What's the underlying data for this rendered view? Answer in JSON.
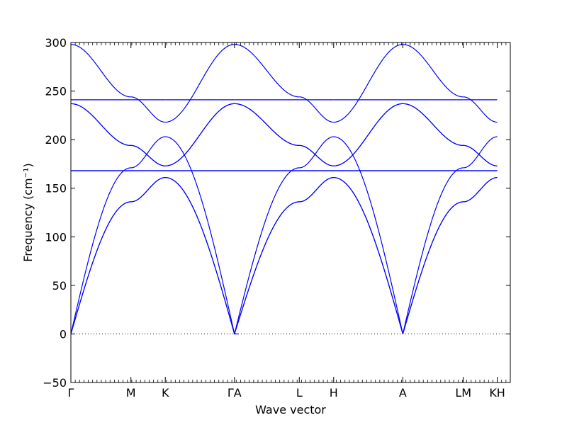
{
  "chart_data": {
    "type": "line",
    "title": "",
    "xlabel": "Wave vector",
    "ylabel": "Frequency (cm⁻¹)",
    "ylim": [
      -50,
      300
    ],
    "yticks": [
      -50,
      0,
      50,
      100,
      150,
      200,
      250,
      300
    ],
    "grid": false,
    "line_color": "#0000ff",
    "zero_line": "dotted",
    "xlim": [
      0,
      5.05
    ],
    "xticks": [
      {
        "pos": 0.0,
        "label": "Γ"
      },
      {
        "pos": 0.69,
        "label": "M"
      },
      {
        "pos": 1.085,
        "label": "K"
      },
      {
        "pos": 1.88,
        "label": "ΓA"
      },
      {
        "pos": 2.625,
        "label": "L"
      },
      {
        "pos": 3.02,
        "label": "H"
      },
      {
        "pos": 3.815,
        "label": "A"
      },
      {
        "pos": 4.51,
        "label": "LM"
      },
      {
        "pos": 4.9,
        "label": "KH"
      }
    ],
    "segments": [
      {
        "name": "Γ-M",
        "x": [
          0.0,
          0.69
        ],
        "branches": [
          {
            "start": 0,
            "end": 136,
            "shape": "acoustic"
          },
          {
            "start": 0,
            "end": 136,
            "shape": "acoustic"
          },
          {
            "start": 0,
            "end": 171,
            "shape": "acoustic"
          },
          {
            "start": 168,
            "end": 168,
            "shape": "cos"
          },
          {
            "start": 168,
            "end": 168,
            "shape": "cos"
          },
          {
            "start": 237,
            "end": 194,
            "shape": "cos"
          },
          {
            "start": 237,
            "end": 194,
            "shape": "cos"
          },
          {
            "start": 241,
            "end": 241,
            "shape": "cos"
          },
          {
            "start": 298,
            "end": 244,
            "shape": "cos"
          }
        ]
      },
      {
        "name": "M-K",
        "x": [
          0.69,
          1.085
        ],
        "branches": [
          {
            "start": 136,
            "end": 161,
            "shape": "cos"
          },
          {
            "start": 136,
            "end": 161,
            "shape": "cos"
          },
          {
            "start": 171,
            "end": 203,
            "shape": "cos"
          },
          {
            "start": 168,
            "end": 168,
            "shape": "cos"
          },
          {
            "start": 168,
            "end": 168,
            "shape": "cos"
          },
          {
            "start": 194,
            "end": 173,
            "shape": "cos"
          },
          {
            "start": 194,
            "end": 173,
            "shape": "cos"
          },
          {
            "start": 241,
            "end": 241,
            "shape": "cos"
          },
          {
            "start": 244,
            "end": 218,
            "shape": "cos"
          }
        ]
      },
      {
        "name": "K-Γ",
        "x": [
          1.085,
          1.88
        ],
        "branches": [
          {
            "start": 161,
            "end": 0,
            "shape": "acoustic-rev"
          },
          {
            "start": 161,
            "end": 0,
            "shape": "acoustic-rev"
          },
          {
            "start": 203,
            "end": 0,
            "shape": "acoustic-rev"
          },
          {
            "start": 168,
            "end": 168,
            "shape": "cos"
          },
          {
            "start": 168,
            "end": 168,
            "shape": "cos"
          },
          {
            "start": 173,
            "end": 237,
            "shape": "cos"
          },
          {
            "start": 173,
            "end": 237,
            "shape": "cos"
          },
          {
            "start": 241,
            "end": 241,
            "shape": "cos"
          },
          {
            "start": 218,
            "end": 298,
            "shape": "cos"
          }
        ]
      },
      {
        "name": "A-L",
        "x": [
          1.88,
          2.625
        ],
        "branches": [
          {
            "start": 0,
            "end": 136,
            "shape": "acoustic"
          },
          {
            "start": 0,
            "end": 136,
            "shape": "acoustic"
          },
          {
            "start": 0,
            "end": 171,
            "shape": "acoustic"
          },
          {
            "start": 168,
            "end": 168,
            "shape": "cos"
          },
          {
            "start": 168,
            "end": 168,
            "shape": "cos"
          },
          {
            "start": 237,
            "end": 194,
            "shape": "cos"
          },
          {
            "start": 237,
            "end": 194,
            "shape": "cos"
          },
          {
            "start": 241,
            "end": 241,
            "shape": "cos"
          },
          {
            "start": 298,
            "end": 244,
            "shape": "cos"
          }
        ]
      },
      {
        "name": "L-H",
        "x": [
          2.625,
          3.02
        ],
        "branches": [
          {
            "start": 136,
            "end": 161,
            "shape": "cos"
          },
          {
            "start": 136,
            "end": 161,
            "shape": "cos"
          },
          {
            "start": 171,
            "end": 203,
            "shape": "cos"
          },
          {
            "start": 168,
            "end": 168,
            "shape": "cos"
          },
          {
            "start": 168,
            "end": 168,
            "shape": "cos"
          },
          {
            "start": 194,
            "end": 173,
            "shape": "cos"
          },
          {
            "start": 194,
            "end": 173,
            "shape": "cos"
          },
          {
            "start": 241,
            "end": 241,
            "shape": "cos"
          },
          {
            "start": 244,
            "end": 218,
            "shape": "cos"
          }
        ]
      },
      {
        "name": "H-A",
        "x": [
          3.02,
          3.815
        ],
        "branches": [
          {
            "start": 161,
            "end": 0,
            "shape": "acoustic-rev"
          },
          {
            "start": 161,
            "end": 0,
            "shape": "acoustic-rev"
          },
          {
            "start": 203,
            "end": 0,
            "shape": "acoustic-rev"
          },
          {
            "start": 168,
            "end": 168,
            "shape": "cos"
          },
          {
            "start": 168,
            "end": 168,
            "shape": "cos"
          },
          {
            "start": 173,
            "end": 237,
            "shape": "cos"
          },
          {
            "start": 173,
            "end": 237,
            "shape": "cos"
          },
          {
            "start": 241,
            "end": 241,
            "shape": "cos"
          },
          {
            "start": 218,
            "end": 298,
            "shape": "cos"
          }
        ]
      },
      {
        "name": "A-L2",
        "x": [
          3.815,
          4.51
        ],
        "branches": [
          {
            "start": 0,
            "end": 136,
            "shape": "acoustic"
          },
          {
            "start": 0,
            "end": 136,
            "shape": "acoustic"
          },
          {
            "start": 0,
            "end": 171,
            "shape": "acoustic"
          },
          {
            "start": 168,
            "end": 168,
            "shape": "cos"
          },
          {
            "start": 168,
            "end": 168,
            "shape": "cos"
          },
          {
            "start": 237,
            "end": 194,
            "shape": "cos"
          },
          {
            "start": 237,
            "end": 194,
            "shape": "cos"
          },
          {
            "start": 241,
            "end": 241,
            "shape": "cos"
          },
          {
            "start": 298,
            "end": 244,
            "shape": "cos"
          }
        ]
      },
      {
        "name": "M-K2",
        "x": [
          4.51,
          4.9
        ],
        "branches": [
          {
            "start": 136,
            "end": 161,
            "shape": "cos"
          },
          {
            "start": 136,
            "end": 161,
            "shape": "cos"
          },
          {
            "start": 171,
            "end": 203,
            "shape": "cos"
          },
          {
            "start": 168,
            "end": 168,
            "shape": "cos"
          },
          {
            "start": 168,
            "end": 168,
            "shape": "cos"
          },
          {
            "start": 194,
            "end": 173,
            "shape": "cos"
          },
          {
            "start": 194,
            "end": 173,
            "shape": "cos"
          },
          {
            "start": 241,
            "end": 241,
            "shape": "cos"
          },
          {
            "start": 244,
            "end": 218,
            "shape": "cos"
          }
        ]
      }
    ]
  }
}
